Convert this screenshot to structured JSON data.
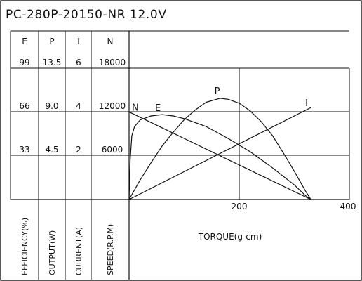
{
  "chart_data": {
    "type": "line",
    "title": "PC-280P-20150-NR   12.0V",
    "xlabel": "TORQUE(g-cm)",
    "xlim": [
      0,
      400
    ],
    "x_tick_labels": [
      {
        "value": 200,
        "label": "200"
      },
      {
        "value": 400,
        "label": "400"
      }
    ],
    "left_axes": [
      {
        "header": "E",
        "side_label": "EFFICIENCY(%)",
        "ticks": [
          "99",
          "66",
          "33"
        ],
        "max": 99
      },
      {
        "header": "P",
        "side_label": "OUTPUT(W)",
        "ticks": [
          "13.5",
          "9.0",
          "4.5"
        ],
        "max": 13.5
      },
      {
        "header": "I",
        "side_label": "CURRENT(A)",
        "ticks": [
          "6",
          "4",
          "2"
        ],
        "max": 6
      },
      {
        "header": "N",
        "side_label": "SPEED(R.P.M)",
        "ticks": [
          "18000",
          "12000",
          "6000"
        ],
        "max": 18000
      }
    ],
    "grid": true,
    "series": [
      {
        "name": "N",
        "axis": "N",
        "x": [
          0,
          330
        ],
        "y": [
          12000,
          0
        ]
      },
      {
        "name": "I",
        "axis": "I",
        "x": [
          0,
          330
        ],
        "y": [
          0,
          4.2
        ]
      },
      {
        "name": "P",
        "axis": "P",
        "x": [
          0,
          20,
          40,
          60,
          80,
          100,
          120,
          140,
          165,
          180,
          200,
          220,
          240,
          260,
          280,
          300,
          320,
          330
        ],
        "y": [
          0,
          2.0,
          3.8,
          5.5,
          6.9,
          8.2,
          9.2,
          10.0,
          10.4,
          10.3,
          9.9,
          9.1,
          8.0,
          6.6,
          4.8,
          2.9,
          0.9,
          0
        ]
      },
      {
        "name": "E",
        "axis": "E",
        "x": [
          0,
          2,
          5,
          10,
          20,
          40,
          60,
          80,
          100,
          140,
          180,
          220,
          260,
          300,
          320,
          330
        ],
        "y": [
          0,
          30,
          48,
          55,
          60,
          63,
          64,
          63,
          61,
          55,
          46,
          36,
          24,
          11,
          3,
          0
        ]
      }
    ]
  }
}
